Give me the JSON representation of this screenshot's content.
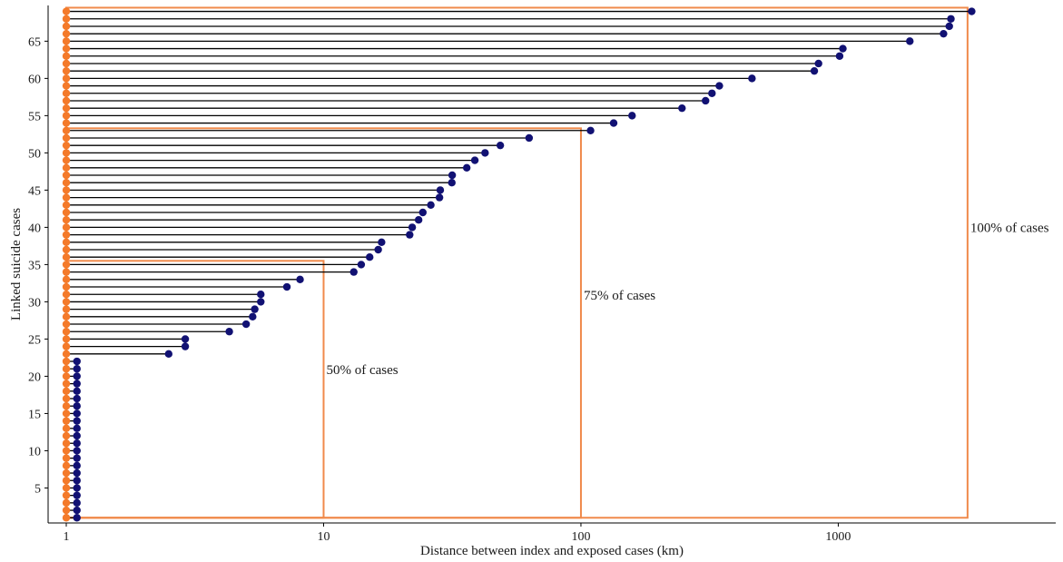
{
  "chart_data": {
    "type": "scatter",
    "xlabel": "Distance between index and exposed cases (km)",
    "ylabel": "Linked suicide cases",
    "x_scale": "log10",
    "xlim": [
      0.85,
      7000
    ],
    "ylim": [
      0.3,
      69.8
    ],
    "x_ticks": [
      1,
      10,
      100,
      1000
    ],
    "x_tick_labels": [
      "1",
      "10",
      "100",
      "1000"
    ],
    "y_ticks": [
      5,
      10,
      15,
      20,
      25,
      30,
      35,
      40,
      45,
      50,
      55,
      60,
      65
    ],
    "y_tick_labels": [
      "5",
      "10",
      "15",
      "20",
      "25",
      "30",
      "35",
      "40",
      "45",
      "50",
      "55",
      "60",
      "65"
    ],
    "grid": false,
    "index_x": 1,
    "colors": {
      "index": "#F47A2A",
      "exposed": "#111173",
      "segment": "#000000",
      "box": "#F08A4B"
    },
    "cases": [
      {
        "y": 1,
        "x": 1.1
      },
      {
        "y": 2,
        "x": 1.1
      },
      {
        "y": 3,
        "x": 1.1
      },
      {
        "y": 4,
        "x": 1.1
      },
      {
        "y": 5,
        "x": 1.1
      },
      {
        "y": 6,
        "x": 1.1
      },
      {
        "y": 7,
        "x": 1.1
      },
      {
        "y": 8,
        "x": 1.1
      },
      {
        "y": 9,
        "x": 1.1
      },
      {
        "y": 10,
        "x": 1.1
      },
      {
        "y": 11,
        "x": 1.1
      },
      {
        "y": 12,
        "x": 1.1
      },
      {
        "y": 13,
        "x": 1.1
      },
      {
        "y": 14,
        "x": 1.1
      },
      {
        "y": 15,
        "x": 1.1
      },
      {
        "y": 16,
        "x": 1.1
      },
      {
        "y": 17,
        "x": 1.1
      },
      {
        "y": 18,
        "x": 1.1
      },
      {
        "y": 19,
        "x": 1.1
      },
      {
        "y": 20,
        "x": 1.1
      },
      {
        "y": 21,
        "x": 1.1
      },
      {
        "y": 22,
        "x": 1.1
      },
      {
        "y": 23,
        "x": 2.5
      },
      {
        "y": 24,
        "x": 2.9
      },
      {
        "y": 25,
        "x": 2.9
      },
      {
        "y": 26,
        "x": 4.3
      },
      {
        "y": 27,
        "x": 5.0
      },
      {
        "y": 28,
        "x": 5.3
      },
      {
        "y": 29,
        "x": 5.4
      },
      {
        "y": 30,
        "x": 5.7
      },
      {
        "y": 31,
        "x": 5.7
      },
      {
        "y": 32,
        "x": 7.2
      },
      {
        "y": 33,
        "x": 8.1
      },
      {
        "y": 34,
        "x": 13.1
      },
      {
        "y": 35,
        "x": 14.0
      },
      {
        "y": 36,
        "x": 15.1
      },
      {
        "y": 37,
        "x": 16.3
      },
      {
        "y": 38,
        "x": 16.8
      },
      {
        "y": 39,
        "x": 21.6
      },
      {
        "y": 40,
        "x": 22.1
      },
      {
        "y": 41,
        "x": 23.4
      },
      {
        "y": 42,
        "x": 24.3
      },
      {
        "y": 43,
        "x": 26.1
      },
      {
        "y": 44,
        "x": 28.2
      },
      {
        "y": 45,
        "x": 28.4
      },
      {
        "y": 46,
        "x": 31.5
      },
      {
        "y": 47,
        "x": 31.6
      },
      {
        "y": 48,
        "x": 36.0
      },
      {
        "y": 49,
        "x": 38.7
      },
      {
        "y": 50,
        "x": 42.4
      },
      {
        "y": 51,
        "x": 48.6
      },
      {
        "y": 52,
        "x": 62.9
      },
      {
        "y": 53,
        "x": 109
      },
      {
        "y": 54,
        "x": 134
      },
      {
        "y": 55,
        "x": 158
      },
      {
        "y": 56,
        "x": 247
      },
      {
        "y": 57,
        "x": 305
      },
      {
        "y": 58,
        "x": 323
      },
      {
        "y": 59,
        "x": 345
      },
      {
        "y": 60,
        "x": 462
      },
      {
        "y": 61,
        "x": 807
      },
      {
        "y": 62,
        "x": 838
      },
      {
        "y": 63,
        "x": 1012
      },
      {
        "y": 64,
        "x": 1042
      },
      {
        "y": 65,
        "x": 1897
      },
      {
        "y": 66,
        "x": 2565
      },
      {
        "y": 67,
        "x": 2700
      },
      {
        "y": 68,
        "x": 2740
      },
      {
        "y": 69,
        "x": 3300
      }
    ],
    "annotations": [
      {
        "label": "50% of cases",
        "x_max": 10,
        "y_max": 35.5
      },
      {
        "label": "75% of cases",
        "x_max": 100,
        "y_max": 53.3
      },
      {
        "label": "100% of cases",
        "x_max": 3180,
        "y_max": 69.5
      }
    ]
  }
}
